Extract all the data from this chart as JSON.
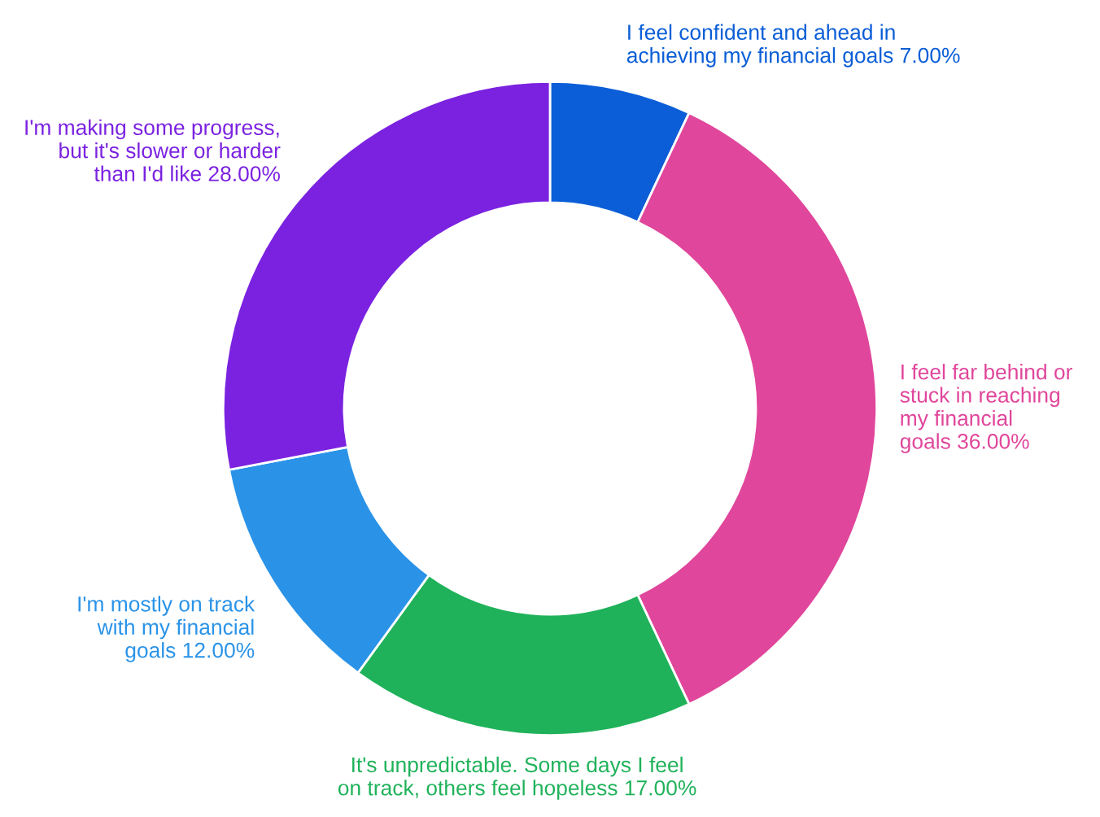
{
  "chart_data": {
    "type": "donut",
    "categories": [
      "I feel confident and ahead in\nachieving my financial goals 7.00%",
      "I feel far behind or\nstuck in reaching\nmy financial\ngoals 36.00%",
      "It's unpredictable. Some days I feel\non track, others feel hopeless 17.00%",
      "I'm mostly on track\nwith my financial\ngoals 12.00%",
      "I'm making some progress,\nbut it's slower or harder\nthan I'd like 28.00%"
    ],
    "values": [
      7,
      36,
      17,
      12,
      28
    ],
    "colors": [
      "#0b5ed7",
      "#e0469b",
      "#1fb25a",
      "#2a93e8",
      "#7b22e0"
    ]
  }
}
